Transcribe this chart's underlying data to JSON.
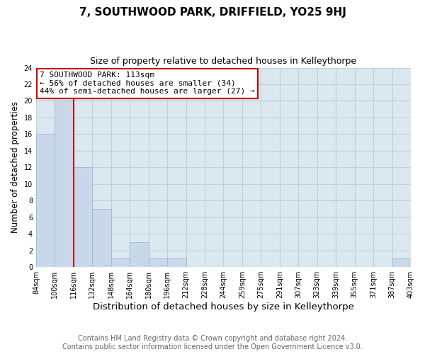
{
  "title": "7, SOUTHWOOD PARK, DRIFFIELD, YO25 9HJ",
  "subtitle": "Size of property relative to detached houses in Kelleythorpe",
  "xlabel": "Distribution of detached houses by size in Kelleythorpe",
  "ylabel": "Number of detached properties",
  "footer_lines": [
    "Contains HM Land Registry data © Crown copyright and database right 2024.",
    "Contains public sector information licensed under the Open Government Licence v3.0."
  ],
  "bin_labels": [
    "84sqm",
    "100sqm",
    "116sqm",
    "132sqm",
    "148sqm",
    "164sqm",
    "180sqm",
    "196sqm",
    "212sqm",
    "228sqm",
    "244sqm",
    "259sqm",
    "275sqm",
    "291sqm",
    "307sqm",
    "323sqm",
    "339sqm",
    "355sqm",
    "371sqm",
    "387sqm",
    "403sqm"
  ],
  "bar_values": [
    16,
    20,
    12,
    7,
    1,
    3,
    1,
    1,
    0,
    0,
    0,
    0,
    0,
    0,
    0,
    0,
    0,
    0,
    0,
    1
  ],
  "bar_color": "#c8d8ea",
  "bar_edge_color": "#a0b8cc",
  "ylim": [
    0,
    24
  ],
  "yticks": [
    0,
    2,
    4,
    6,
    8,
    10,
    12,
    14,
    16,
    18,
    20,
    22,
    24
  ],
  "property_line_color": "#cc0000",
  "annotation_title": "7 SOUTHWOOD PARK: 113sqm",
  "annotation_line1": "← 56% of detached houses are smaller (34)",
  "annotation_line2": "44% of semi-detached houses are larger (27) →",
  "annotation_box_facecolor": "#ffffff",
  "annotation_box_edgecolor": "#cc0000",
  "grid_color": "#c0cedd",
  "plot_bg_color": "#dce8f0",
  "fig_bg_color": "#ffffff",
  "title_fontsize": 11,
  "subtitle_fontsize": 9,
  "tick_fontsize": 7,
  "ylabel_fontsize": 8.5,
  "xlabel_fontsize": 9.5,
  "annotation_fontsize": 8,
  "footer_fontsize": 7,
  "footer_color": "#666666"
}
